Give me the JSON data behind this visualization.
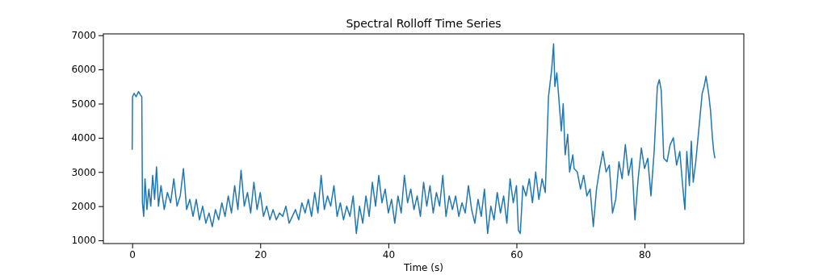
{
  "chart_data": {
    "type": "line",
    "title": "Spectral Rolloff Time Series",
    "xlabel": "Time (s)",
    "xlim": [
      -4.5,
      95.5
    ],
    "ylim": [
      906,
      7040
    ],
    "xticks": [
      0,
      20,
      40,
      60,
      80
    ],
    "yticks": [
      1000,
      2000,
      3000,
      4000,
      5000,
      6000,
      7000
    ],
    "grid": false,
    "series": [
      {
        "color": "#1f77b4",
        "x": [
          0,
          0.05,
          0.3,
          0.6,
          1.0,
          1.3,
          1.5,
          1.6,
          1.8,
          2.0,
          2.3,
          2.6,
          2.9,
          3.2,
          3.5,
          3.8,
          4.1,
          4.5,
          5.0,
          5.5,
          6.0,
          6.5,
          7.0,
          7.5,
          8.0,
          8.5,
          9.0,
          9.5,
          10,
          10.5,
          11,
          11.5,
          12,
          12.5,
          13,
          13.5,
          14,
          14.5,
          15,
          15.5,
          16,
          16.5,
          17,
          17.5,
          18,
          18.5,
          19,
          19.5,
          20,
          20.5,
          21,
          21.5,
          22,
          22.5,
          23,
          23.5,
          24,
          24.5,
          25,
          25.5,
          26,
          26.5,
          27,
          27.5,
          28,
          28.5,
          29,
          29.5,
          30,
          30.5,
          31,
          31.5,
          32,
          32.5,
          33,
          33.5,
          34,
          34.5,
          35,
          35.5,
          36,
          36.5,
          37,
          37.5,
          38,
          38.5,
          39,
          39.5,
          40,
          40.5,
          41,
          41.5,
          42,
          42.5,
          43,
          43.5,
          44,
          44.5,
          45,
          45.5,
          46,
          46.5,
          47,
          47.5,
          48,
          48.5,
          49,
          49.5,
          50,
          50.5,
          51,
          51.5,
          52,
          52.5,
          53,
          53.5,
          54,
          54.5,
          55,
          55.5,
          56,
          56.5,
          57,
          57.5,
          58,
          58.5,
          59,
          59.5,
          60,
          60.3,
          60.6,
          61,
          61.5,
          62,
          62.5,
          63,
          63.5,
          64,
          64.5,
          65,
          65.5,
          65.8,
          66,
          66.3,
          66.6,
          67,
          67.3,
          67.6,
          68,
          68.3,
          68.8,
          69,
          69.5,
          70,
          70.5,
          71,
          71.5,
          72,
          72.5,
          73,
          73.5,
          74,
          74.5,
          75,
          75.5,
          76,
          76.5,
          77,
          77.5,
          78,
          78.5,
          79,
          79.5,
          80,
          80.5,
          81,
          81.5,
          82,
          82.3,
          82.6,
          83,
          83.5,
          84,
          84.5,
          85,
          85.5,
          86,
          86.3,
          86.6,
          87,
          87.3,
          87.6,
          88,
          88.5,
          89,
          89.3,
          89.6,
          90,
          90.3,
          90.6,
          90.8,
          91
        ],
        "values": [
          3650,
          5200,
          5300,
          5200,
          5350,
          5250,
          5200,
          2100,
          1700,
          2800,
          1900,
          2500,
          2000,
          2900,
          2200,
          3150,
          2000,
          2600,
          1900,
          2400,
          2100,
          2800,
          2000,
          2300,
          3100,
          1900,
          2200,
          1700,
          2200,
          1600,
          2000,
          1500,
          1800,
          1400,
          1900,
          1600,
          2100,
          1700,
          2300,
          1800,
          2600,
          1900,
          3050,
          2000,
          2400,
          1800,
          2700,
          1900,
          2400,
          1700,
          2000,
          1600,
          1900,
          1600,
          1800,
          1700,
          2000,
          1500,
          1700,
          1900,
          1600,
          2100,
          1800,
          2200,
          1700,
          2400,
          1800,
          2900,
          1900,
          2300,
          2000,
          2600,
          1700,
          2100,
          1600,
          2000,
          1700,
          2300,
          1200,
          2000,
          1500,
          2300,
          1700,
          2700,
          2000,
          2900,
          2100,
          2500,
          1800,
          2200,
          1500,
          2300,
          1800,
          2900,
          2100,
          2500,
          1900,
          2300,
          1700,
          2700,
          2000,
          2600,
          1800,
          2400,
          2000,
          2900,
          1700,
          2300,
          1900,
          2300,
          1700,
          2100,
          1800,
          2600,
          1900,
          1500,
          2200,
          1700,
          2500,
          1200,
          2000,
          1600,
          2400,
          1800,
          2300,
          1500,
          2800,
          2100,
          2600,
          1300,
          1200,
          2600,
          2300,
          2800,
          2100,
          3000,
          2200,
          2800,
          2400,
          5200,
          6000,
          6750,
          5500,
          5900,
          5200,
          4200,
          5000,
          3500,
          4100,
          3000,
          3500,
          3100,
          3000,
          2500,
          2900,
          2300,
          2500,
          1400,
          2500,
          3100,
          3600,
          3000,
          3200,
          1800,
          2200,
          3300,
          2800,
          3800,
          2900,
          3400,
          1600,
          2800,
          3700,
          3100,
          3400,
          2300,
          3600,
          5500,
          5700,
          5400,
          3400,
          3300,
          3800,
          4000,
          3200,
          3600,
          2500,
          1900,
          3600,
          2600,
          3900,
          2700,
          3300,
          4300,
          5300,
          5500,
          5800,
          5300,
          4800,
          4000,
          3600,
          3400
        ]
      }
    ]
  }
}
